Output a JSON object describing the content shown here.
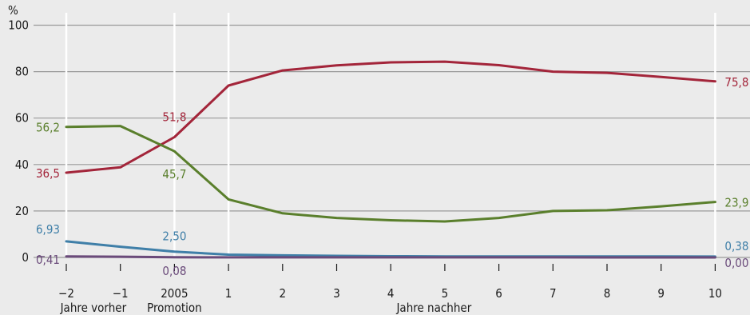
{
  "chart_data": {
    "type": "line",
    "title": "",
    "y_unit_label": "%",
    "ylim": [
      0,
      100
    ],
    "yticks": [
      0,
      20,
      40,
      60,
      80,
      100
    ],
    "x": [
      -2,
      -1,
      0,
      1,
      2,
      3,
      4,
      5,
      6,
      7,
      8,
      9,
      10
    ],
    "x_tick_labels": [
      "−2",
      "−1",
      "2005",
      "1",
      "2",
      "3",
      "4",
      "5",
      "6",
      "7",
      "8",
      "9",
      "10"
    ],
    "x_group_labels": [
      {
        "text": "Jahre vorher",
        "at": -1.5
      },
      {
        "text": "Promotion",
        "at": 0
      },
      {
        "text": "Jahre nachher",
        "at": 4.8
      }
    ],
    "white_vertical_gridlines": [
      -2,
      0,
      1,
      10
    ],
    "grid": true,
    "series": [
      {
        "name": "",
        "color": "#a3253a",
        "values": [
          36.5,
          38.8,
          51.8,
          74.0,
          80.5,
          82.7,
          84.0,
          84.3,
          82.8,
          80.0,
          79.5,
          77.7,
          75.8
        ],
        "labels": [
          {
            "index": 0,
            "text": "36,5"
          },
          {
            "index": 2,
            "text": "51,8"
          },
          {
            "index": 12,
            "text": "75,8"
          }
        ]
      },
      {
        "name": "",
        "color": "#5a7f2c",
        "values": [
          56.2,
          56.6,
          45.7,
          25.0,
          19.0,
          17.0,
          16.0,
          15.5,
          17.0,
          20.0,
          20.3,
          22.0,
          23.9
        ],
        "labels": [
          {
            "index": 0,
            "text": "56,2"
          },
          {
            "index": 2,
            "text": "45,7"
          },
          {
            "index": 12,
            "text": "23,9"
          }
        ]
      },
      {
        "name": "",
        "color": "#3f7fa8",
        "values": [
          6.93,
          4.6,
          2.5,
          1.2,
          0.9,
          0.7,
          0.5,
          0.45,
          0.45,
          0.42,
          0.4,
          0.4,
          0.38
        ],
        "labels": [
          {
            "index": 0,
            "text": "6,93"
          },
          {
            "index": 2,
            "text": "2,50"
          },
          {
            "index": 12,
            "text": "0,38"
          }
        ]
      },
      {
        "name": "",
        "color": "#6a4a7a",
        "values": [
          0.41,
          0.3,
          0.08,
          0.05,
          0.04,
          0.03,
          0.03,
          0.02,
          0.02,
          0.02,
          0.01,
          0.01,
          0.0
        ],
        "labels": [
          {
            "index": 0,
            "text": "0,41"
          },
          {
            "index": 2,
            "text": "0,08"
          },
          {
            "index": 12,
            "text": "0,00"
          }
        ]
      }
    ]
  }
}
